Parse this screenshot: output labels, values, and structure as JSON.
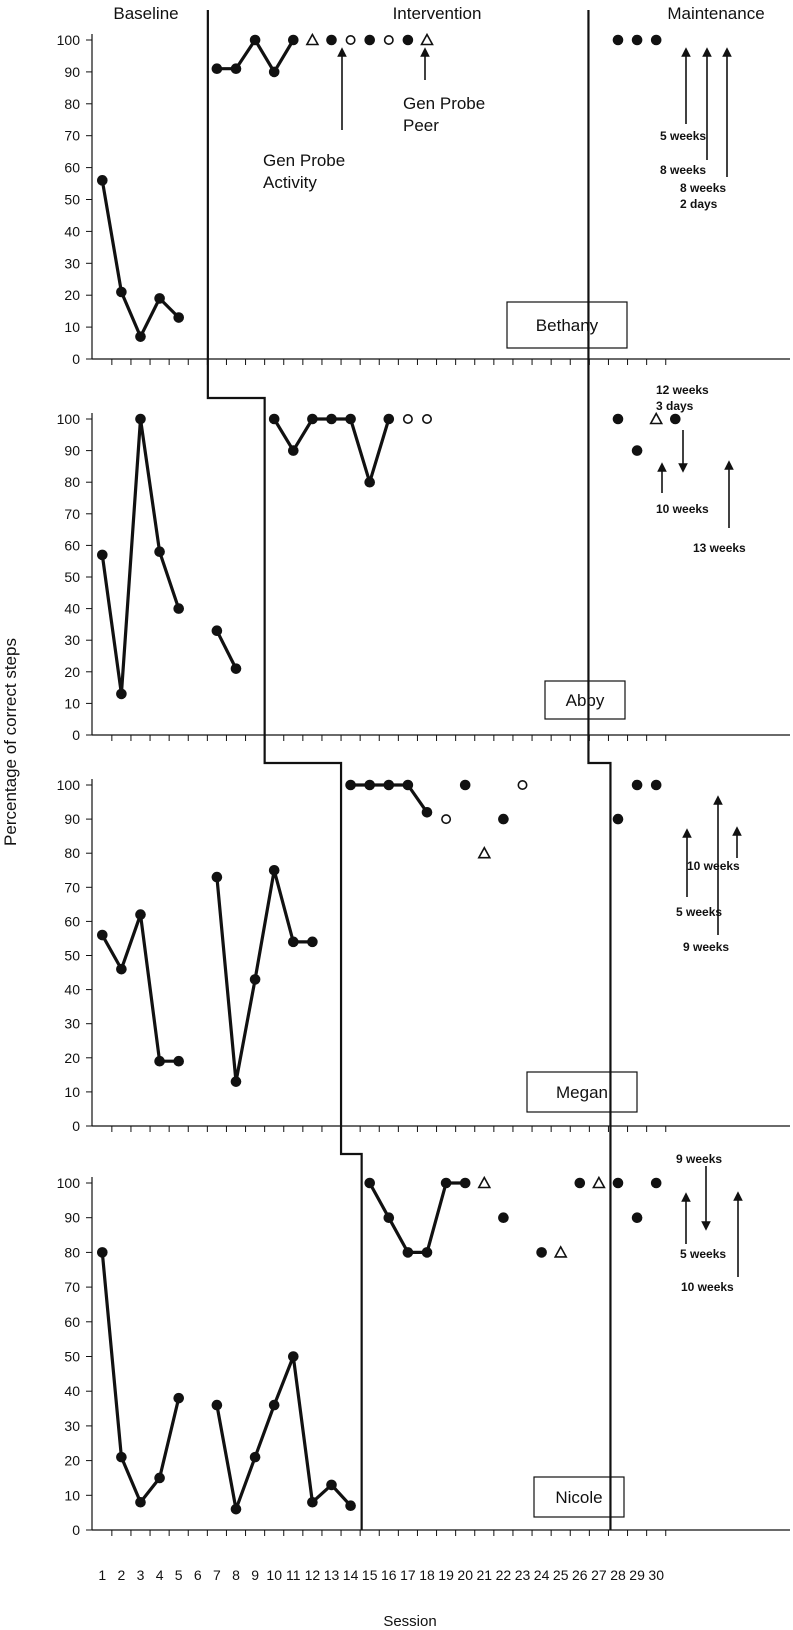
{
  "chart_data": {
    "type": "scatter",
    "title": "",
    "ylabel": "Percentage of correct steps",
    "xlabel": "Session",
    "ylim": [
      0,
      100
    ],
    "yticks": [
      0,
      10,
      20,
      30,
      40,
      50,
      60,
      70,
      80,
      90,
      100
    ],
    "xticks": [
      1,
      2,
      3,
      4,
      5,
      6,
      7,
      8,
      9,
      10,
      11,
      12,
      13,
      14,
      15,
      16,
      17,
      18,
      19,
      20,
      21,
      22,
      23,
      24,
      25,
      26,
      27,
      28,
      29,
      30
    ],
    "phases": [
      "Baseline",
      "Intervention",
      "Maintenance"
    ],
    "panels": [
      {
        "participant": "Bethany",
        "phase_change_after_session": [
          6,
          27
        ],
        "series": [
          {
            "name": "baseline",
            "connected": true,
            "marker": "filled-circle",
            "x": [
              1,
              2,
              3,
              4,
              5
            ],
            "y": [
              56,
              21,
              7,
              19,
              13
            ]
          },
          {
            "name": "intervention",
            "connected": true,
            "marker": "filled-circle",
            "x": [
              7,
              8,
              9,
              10,
              11
            ],
            "y": [
              91,
              91,
              100,
              90,
              100
            ]
          },
          {
            "name": "gen-probe-activity",
            "connected": false,
            "marker": "open-triangle",
            "x": [
              12,
              18
            ],
            "y": [
              100,
              100
            ]
          },
          {
            "name": "gen-probe-peer",
            "connected": false,
            "marker": "open-circle",
            "x": [
              14,
              16
            ],
            "y": [
              100,
              100
            ]
          },
          {
            "name": "intervention-probe",
            "connected": false,
            "marker": "filled-circle",
            "x": [
              13,
              15,
              17
            ],
            "y": [
              100,
              100,
              100
            ]
          },
          {
            "name": "maintenance",
            "connected": false,
            "marker": "filled-circle",
            "x": [
              28,
              29,
              30
            ],
            "y": [
              100,
              100,
              100
            ]
          }
        ],
        "annotations": [
          {
            "text": "Gen Probe\nActivity",
            "x": 12,
            "y": 100,
            "style": "large"
          },
          {
            "text": "Gen Probe\nPeer",
            "x": 16,
            "y": 100,
            "style": "large"
          },
          {
            "text": "5 weeks",
            "x": 28,
            "y": 100
          },
          {
            "text": "8 weeks",
            "x": 29,
            "y": 100
          },
          {
            "text": "8 weeks\n2 days",
            "x": 30,
            "y": 100
          }
        ]
      },
      {
        "participant": "Abby",
        "phase_change_after_session": [
          9,
          27
        ],
        "series": [
          {
            "name": "baseline-a",
            "connected": true,
            "marker": "filled-circle",
            "x": [
              1,
              2,
              3,
              4,
              5
            ],
            "y": [
              57,
              13,
              100,
              58,
              40
            ]
          },
          {
            "name": "baseline-b",
            "connected": true,
            "marker": "filled-circle",
            "x": [
              7,
              8
            ],
            "y": [
              33,
              21
            ]
          },
          {
            "name": "intervention",
            "connected": true,
            "marker": "filled-circle",
            "x": [
              10,
              11,
              12,
              13,
              14,
              15,
              16
            ],
            "y": [
              100,
              90,
              100,
              100,
              100,
              80,
              100
            ]
          },
          {
            "name": "gen-probe-peer",
            "connected": false,
            "marker": "open-circle",
            "x": [
              17,
              18
            ],
            "y": [
              100,
              100
            ]
          },
          {
            "name": "maintenance",
            "connected": false,
            "marker": "filled-circle",
            "x": [
              28,
              29,
              31
            ],
            "y": [
              100,
              90,
              100
            ]
          },
          {
            "name": "maintenance-gen-activity",
            "connected": false,
            "marker": "open-triangle",
            "x": [
              30
            ],
            "y": [
              100
            ]
          }
        ],
        "annotations": [
          {
            "text": "12 weeks\n3 days",
            "x": 29,
            "y": 90
          },
          {
            "text": "10 weeks",
            "x": 28,
            "y": 100
          },
          {
            "text": "13 weeks",
            "x": 31,
            "y": 100
          }
        ]
      },
      {
        "participant": "Megan",
        "phase_change_after_session": [
          13,
          27
        ],
        "series": [
          {
            "name": "baseline-a",
            "connected": true,
            "marker": "filled-circle",
            "x": [
              1,
              2,
              3,
              4,
              5
            ],
            "y": [
              56,
              46,
              62,
              19,
              19
            ]
          },
          {
            "name": "baseline-b",
            "connected": true,
            "marker": "filled-circle",
            "x": [
              7,
              8,
              9,
              10,
              11,
              12
            ],
            "y": [
              73,
              13,
              43,
              75,
              54,
              54
            ]
          },
          {
            "name": "intervention",
            "connected": true,
            "marker": "filled-circle",
            "x": [
              14,
              15,
              16,
              17,
              18
            ],
            "y": [
              100,
              100,
              100,
              100,
              92
            ]
          },
          {
            "name": "intervention-probe",
            "connected": false,
            "marker": "filled-circle",
            "x": [
              20,
              22
            ],
            "y": [
              100,
              90
            ]
          },
          {
            "name": "gen-probe-peer",
            "connected": false,
            "marker": "open-circle",
            "x": [
              19,
              23
            ],
            "y": [
              90,
              100
            ]
          },
          {
            "name": "gen-probe-activity",
            "connected": false,
            "marker": "open-triangle",
            "x": [
              21
            ],
            "y": [
              80
            ]
          },
          {
            "name": "maintenance",
            "connected": false,
            "marker": "filled-circle",
            "x": [
              28,
              29,
              30
            ],
            "y": [
              90,
              100,
              100
            ]
          }
        ],
        "annotations": [
          {
            "text": "10 weeks",
            "x": 30,
            "y": 100
          },
          {
            "text": "5 weeks",
            "x": 28,
            "y": 90
          },
          {
            "text": "9 weeks",
            "x": 29,
            "y": 100
          }
        ]
      },
      {
        "participant": "Nicole",
        "phase_change_after_session": [
          14,
          27
        ],
        "series": [
          {
            "name": "baseline-a",
            "connected": true,
            "marker": "filled-circle",
            "x": [
              1,
              2,
              3,
              4,
              5
            ],
            "y": [
              80,
              21,
              8,
              15,
              38
            ]
          },
          {
            "name": "baseline-b",
            "connected": true,
            "marker": "filled-circle",
            "x": [
              7,
              8,
              9,
              10,
              11,
              12,
              13,
              14
            ],
            "y": [
              36,
              6,
              21,
              36,
              50,
              8,
              13,
              7
            ]
          },
          {
            "name": "intervention",
            "connected": true,
            "marker": "filled-circle",
            "x": [
              15,
              16,
              17,
              18,
              19,
              20
            ],
            "y": [
              100,
              90,
              80,
              80,
              100,
              100
            ]
          },
          {
            "name": "intervention-probe",
            "connected": false,
            "marker": "filled-circle",
            "x": [
              22,
              24,
              26
            ],
            "y": [
              90,
              80,
              100
            ]
          },
          {
            "name": "gen-probe-activity",
            "connected": false,
            "marker": "open-triangle",
            "x": [
              21,
              25,
              27
            ],
            "y": [
              100,
              80,
              100
            ]
          },
          {
            "name": "maintenance",
            "connected": false,
            "marker": "filled-circle",
            "x": [
              28,
              29,
              30
            ],
            "y": [
              100,
              90,
              100
            ]
          }
        ],
        "annotations": [
          {
            "text": "9 weeks",
            "x": 29,
            "y": 90
          },
          {
            "text": "5 weeks",
            "x": 28,
            "y": 100
          },
          {
            "text": "10 weeks",
            "x": 30,
            "y": 100
          }
        ]
      }
    ]
  }
}
